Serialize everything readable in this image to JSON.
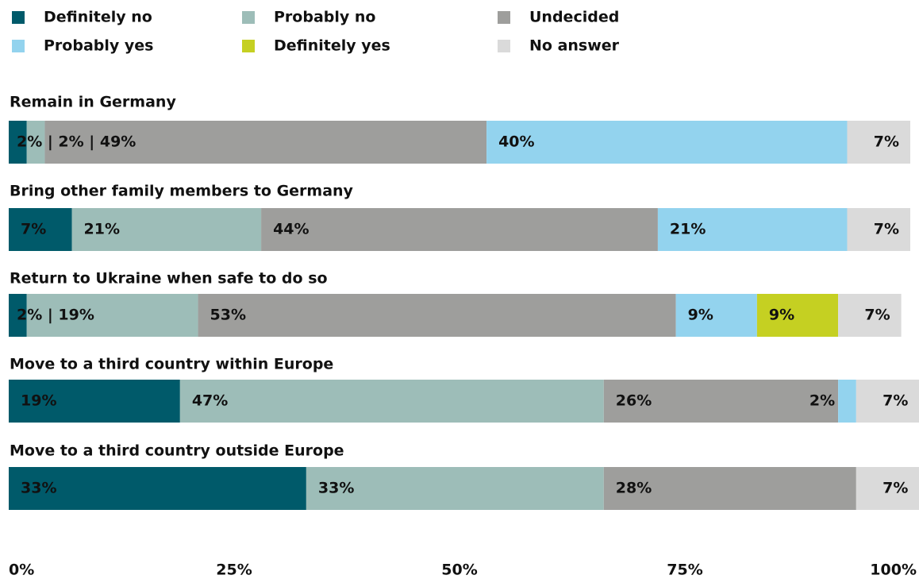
{
  "chart_data": {
    "type": "stacked-bar-horizontal",
    "categories": [
      "Remain in Germany",
      "Bring other family members to Germany",
      "Return to Ukraine when safe to do so",
      "Move to a third country within Europe",
      "Move to a third country outside Europe"
    ],
    "series": [
      {
        "name": "Definitely no",
        "color": "#005a6a",
        "values": [
          2,
          7,
          2,
          19,
          33
        ],
        "value_labels": [
          "2% | 2% | 49%",
          "7%",
          "2% | 19%",
          "19%",
          "33%"
        ]
      },
      {
        "name": "Probably no",
        "color": "#9dbdb8",
        "values": [
          2,
          21,
          19,
          47,
          33
        ],
        "value_labels": [
          null,
          "21%",
          null,
          "47%",
          "33%"
        ]
      },
      {
        "name": "Undecided",
        "color": "#9e9e9c",
        "values": [
          49,
          44,
          53,
          26,
          28
        ],
        "value_labels": [
          null,
          "44%",
          "53%",
          "26%",
          "28%"
        ]
      },
      {
        "name": "Probably yes",
        "color": "#93d3ee",
        "values": [
          40,
          21,
          9,
          2,
          0
        ],
        "value_labels": [
          "40%",
          "21%",
          "9%",
          "2%",
          null
        ]
      },
      {
        "name": "Definitely yes",
        "color": "#c5d022",
        "values": [
          0,
          0,
          9,
          0,
          0
        ],
        "value_labels": [
          null,
          null,
          "9%",
          null,
          null
        ]
      },
      {
        "name": "No answer",
        "color": "#dadada",
        "values": [
          7,
          7,
          7,
          7,
          7
        ],
        "value_labels": [
          "7%",
          "7%",
          "7%",
          "7%",
          "7%"
        ]
      }
    ],
    "xlim": [
      0,
      100
    ],
    "xticks": [
      {
        "value": 0,
        "label": "0%"
      },
      {
        "value": 25,
        "label": "25%"
      },
      {
        "value": 50,
        "label": "50%"
      },
      {
        "value": 75,
        "label": "75%"
      },
      {
        "value": 100,
        "label": "100%"
      }
    ]
  }
}
